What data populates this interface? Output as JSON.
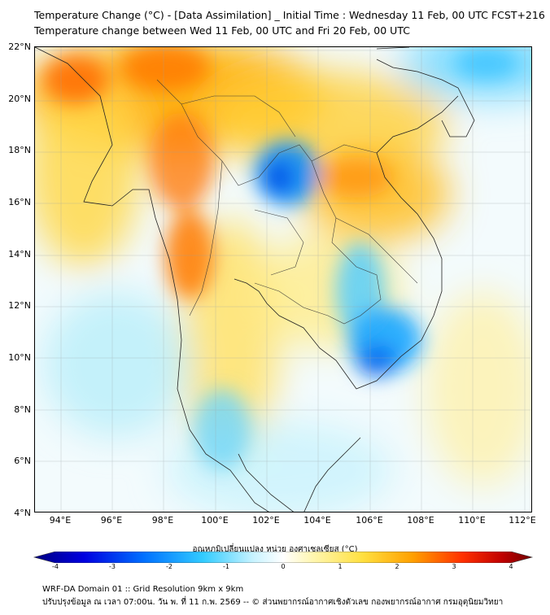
{
  "header": {
    "title_line1": "Temperature Change (°C) - [Data Assimilation] _ Initial Time : Wednesday 11 Feb, 00 UTC FCST+216",
    "title_line2": "Temperature change between Wed 11 Feb, 00 UTC and Fri 20 Feb, 00 UTC"
  },
  "map": {
    "lat_labels": [
      "22°N",
      "20°N",
      "18°N",
      "16°N",
      "14°N",
      "12°N",
      "10°N",
      "8°N",
      "6°N",
      "4°N"
    ],
    "lon_labels": [
      "94°E",
      "96°E",
      "98°E",
      "100°E",
      "102°E",
      "104°E",
      "106°E",
      "108°E",
      "110°E",
      "112°E"
    ],
    "lat_range": [
      4,
      22
    ],
    "lon_range": [
      93,
      112.3
    ],
    "colors": {
      "warm": "#ff6a00",
      "yellow": "#fff07a",
      "cool": "#00b4ff",
      "deep_cool": "#0050e6",
      "land_outline": "#222222"
    }
  },
  "colorbar": {
    "title": "อุณหภูมิเปลี่ยนแปลง หน่วย องศาเซลเซียส (°C)",
    "ticks": [
      "-4",
      "-3",
      "-2",
      "-1",
      "0",
      "1",
      "2",
      "3",
      "4"
    ],
    "range": [
      -4,
      4
    ]
  },
  "footer": {
    "line1": "WRF-DA Domain 01 :: Grid Resolution 9km x 9km",
    "line2": "ปรับปรุงข้อมูล ณ เวลา 07:00น. วัน พ. ที่ 11 ก.พ. 2569 -- © ส่วนพยากรณ์อากาศเชิงตัวเลข กองพยากรณ์อากาศ กรมอุตุนิยมวิทยา"
  }
}
